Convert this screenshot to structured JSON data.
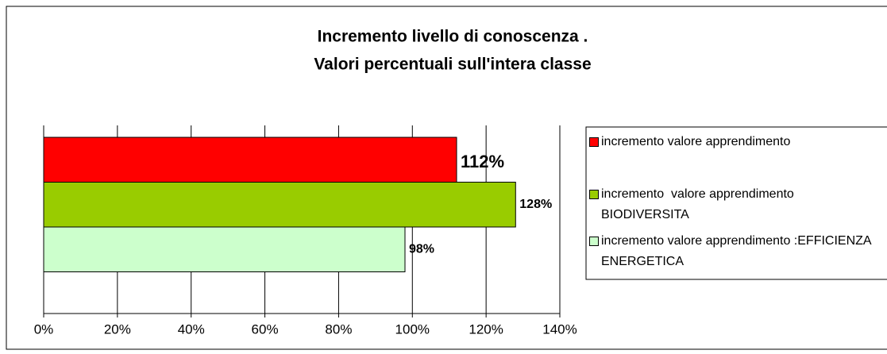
{
  "chart_data": {
    "type": "bar",
    "orientation": "horizontal",
    "title": [
      "Incremento livello di conoscenza .",
      "Valori percentuali sull'intera classe"
    ],
    "series": [
      {
        "name": "incremento valore apprendimento",
        "color": "#ff0000",
        "values": [
          112
        ],
        "value_labels": [
          "112%"
        ]
      },
      {
        "name": "incremento  valore apprendimento BIODIVERSITA",
        "color": "#99cc00",
        "values": [
          128
        ],
        "value_labels": [
          "128%"
        ]
      },
      {
        "name": "incremento valore apprendimento :EFFICIENZA ENERGETICA",
        "color": "#ccffcc",
        "values": [
          98
        ],
        "value_labels": [
          "98%"
        ]
      }
    ],
    "xlim": [
      0,
      140
    ],
    "xticks": [
      {
        "value": 0,
        "label": "0%"
      },
      {
        "value": 20,
        "label": "20%"
      },
      {
        "value": 40,
        "label": "40%"
      },
      {
        "value": 60,
        "label": "60%"
      },
      {
        "value": 80,
        "label": "80%"
      },
      {
        "value": 100,
        "label": "100%"
      },
      {
        "value": 120,
        "label": "120%"
      },
      {
        "value": 140,
        "label": "140%"
      }
    ],
    "grid": true,
    "legend": "right"
  }
}
